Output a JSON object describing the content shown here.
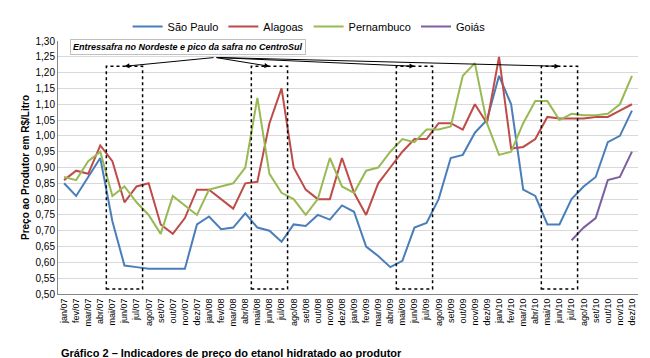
{
  "chart_data": {
    "type": "line",
    "title": "Gráfico 2 – Indicadores de preço do etanol hidratado ao produtor",
    "y_label": "Preço ao Produtor em R$/Litro",
    "categories": [
      "jan/07",
      "fev/07",
      "mar/07",
      "abr/07",
      "mai/07",
      "jun/07",
      "jul/07",
      "ago/07",
      "set/07",
      "out/07",
      "nov/07",
      "dez/07",
      "jan/08",
      "fev/08",
      "mar/08",
      "abr/08",
      "mai/08",
      "jun/08",
      "jul/08",
      "ago/08",
      "set/08",
      "out/08",
      "nov/08",
      "dez/08",
      "jan/09",
      "fev/09",
      "mar/09",
      "abr/09",
      "mai/09",
      "jun/09",
      "jul/09",
      "ago/09",
      "set/09",
      "out/09",
      "nov/09",
      "dez/09",
      "jan/10",
      "fev/10",
      "mar/10",
      "abr/10",
      "mai/10",
      "jun/10",
      "jul/10",
      "ago/10",
      "set/10",
      "out/10",
      "nov/10",
      "dez/10"
    ],
    "series": [
      {
        "name": "São Paulo",
        "color": "#4a7ebb",
        "values": [
          0.85,
          0.81,
          0.87,
          0.93,
          0.73,
          0.59,
          0.585,
          0.58,
          0.58,
          0.58,
          0.58,
          0.72,
          0.745,
          0.705,
          0.71,
          0.755,
          0.71,
          0.7,
          0.665,
          0.72,
          0.715,
          0.75,
          0.735,
          0.78,
          0.76,
          0.65,
          0.62,
          0.585,
          0.605,
          0.71,
          0.725,
          0.8,
          0.93,
          0.94,
          1.01,
          1.05,
          1.19,
          1.1,
          0.83,
          0.81,
          0.72,
          0.72,
          0.8,
          0.84,
          0.87,
          0.98,
          1.0,
          1.08
        ]
      },
      {
        "name": "Alagoas",
        "color": "#be4b48",
        "values": [
          0.86,
          0.89,
          0.88,
          0.97,
          0.92,
          0.79,
          0.84,
          0.85,
          0.72,
          0.69,
          0.74,
          0.83,
          0.83,
          0.8,
          0.77,
          0.85,
          0.855,
          1.04,
          1.15,
          0.9,
          0.83,
          0.8,
          0.8,
          0.93,
          0.82,
          0.75,
          0.85,
          0.9,
          0.95,
          0.99,
          0.99,
          1.04,
          1.04,
          1.02,
          1.1,
          1.04,
          1.25,
          0.96,
          0.965,
          0.99,
          1.06,
          1.055,
          1.055,
          1.055,
          1.06,
          1.06,
          1.08,
          1.1
        ]
      },
      {
        "name": "Pernambuco",
        "color": "#98b954",
        "values": [
          0.87,
          0.86,
          0.92,
          0.95,
          0.81,
          0.84,
          0.79,
          0.75,
          0.69,
          0.81,
          0.78,
          0.75,
          0.83,
          0.84,
          0.85,
          0.9,
          1.12,
          0.88,
          0.82,
          0.8,
          0.75,
          0.8,
          0.93,
          0.84,
          0.82,
          0.89,
          0.9,
          0.95,
          0.99,
          0.98,
          1.02,
          1.02,
          1.03,
          1.19,
          1.23,
          1.04,
          0.94,
          0.95,
          1.04,
          1.11,
          1.11,
          1.05,
          1.07,
          1.065,
          1.065,
          1.07,
          1.1,
          1.19
        ]
      },
      {
        "name": "Goiás",
        "color": "#7d60a0",
        "values": [
          null,
          null,
          null,
          null,
          null,
          null,
          null,
          null,
          null,
          null,
          null,
          null,
          null,
          null,
          null,
          null,
          null,
          null,
          null,
          null,
          null,
          null,
          null,
          null,
          null,
          null,
          null,
          null,
          null,
          null,
          null,
          null,
          null,
          null,
          null,
          null,
          null,
          null,
          null,
          null,
          null,
          null,
          0.67,
          0.71,
          0.74,
          0.86,
          0.87,
          0.95
        ]
      }
    ],
    "ylim": [
      0.5,
      1.3
    ],
    "yticks": [
      {
        "value": 0.5,
        "label": "0,50"
      },
      {
        "value": 0.55,
        "label": "0,55"
      },
      {
        "value": 0.6,
        "label": "0,60"
      },
      {
        "value": 0.65,
        "label": "0,65"
      },
      {
        "value": 0.7,
        "label": "0,70"
      },
      {
        "value": 0.75,
        "label": "0,75"
      },
      {
        "value": 0.8,
        "label": "0,80"
      },
      {
        "value": 0.85,
        "label": "0,85"
      },
      {
        "value": 0.9,
        "label": "0,90"
      },
      {
        "value": 0.95,
        "label": "0,95"
      },
      {
        "value": 1.0,
        "label": "1,00"
      },
      {
        "value": 1.05,
        "label": "1,05"
      },
      {
        "value": 1.1,
        "label": "1,10"
      },
      {
        "value": 1.15,
        "label": "1,15"
      },
      {
        "value": 1.2,
        "label": "1,20"
      },
      {
        "value": 1.25,
        "label": "1,25"
      },
      {
        "value": 1.3,
        "label": "1,30"
      }
    ],
    "grid": true,
    "legend": "top",
    "annotations": [
      {
        "text": "Entressafra no Nordeste e pico da safra no CentroSul",
        "periods": [
          [
            "mai/07",
            "jul/07"
          ],
          [
            "mai/08",
            "jul/08"
          ],
          [
            "mai/09",
            "jul/09"
          ],
          [
            "mai/10",
            "jul/10"
          ]
        ]
      }
    ]
  }
}
